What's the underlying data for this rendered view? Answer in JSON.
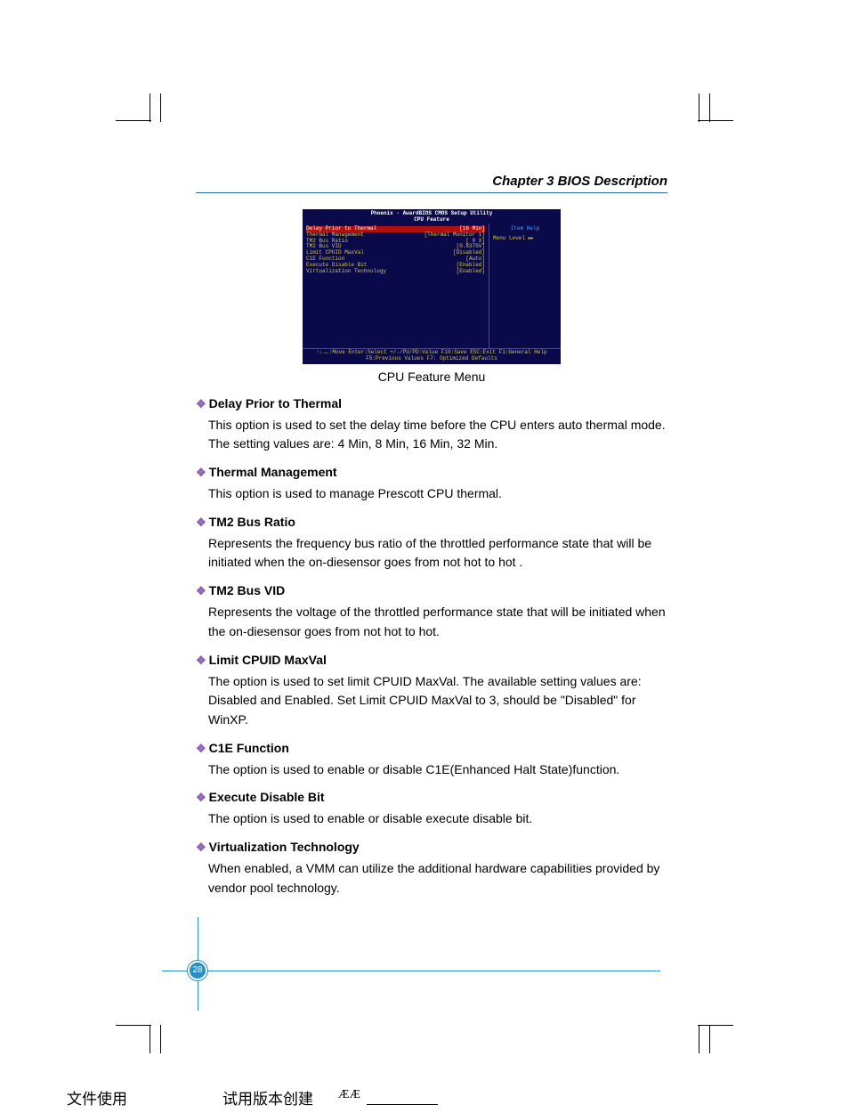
{
  "header": {
    "chapter": "Chapter 3    BIOS Description"
  },
  "bios": {
    "title1": "Phoenix - AwardBIOS CMOS Setup Utility",
    "title2": "CPU Feature",
    "items": [
      {
        "label": "Delay Prior to Thermal",
        "value": "[16 Min]",
        "highlight": true
      },
      {
        "label": "Thermal Management",
        "value": "[Thermal Monitor 1]"
      },
      {
        "label": "TM2 Bus Ratio",
        "value": "[ 0 X]"
      },
      {
        "label": "TM2 Bus VID",
        "value": "[0.8375V]"
      },
      {
        "label": "Limit CPUID MaxVal",
        "value": "[Disabled]"
      },
      {
        "label": "C1E Function",
        "value": "[Auto]"
      },
      {
        "label": "Execute Disable Bit",
        "value": "[Enabled]"
      },
      {
        "label": "Virtualization Technology",
        "value": "[Enabled]"
      }
    ],
    "help_title": "Item Help",
    "help_menu": "Menu Level   ▸▸",
    "footer1": "↑↓→←:Move   Enter:Select   +/-/PU/PD:Value   F10:Save   ESC:Exit   F1:General Help",
    "footer2": "F5:Previous Values          F7: Optimized Defaults",
    "caption": "CPU Feature Menu"
  },
  "sections": [
    {
      "title": "Delay Prior to Thermal",
      "body": "This option is used to set the delay time before the CPU enters auto thermal mode. The setting values are: 4 Min, 8 Min, 16 Min, 32 Min."
    },
    {
      "title": "Thermal Management",
      "body": "This option is used to manage Prescott CPU thermal."
    },
    {
      "title": "TM2 Bus Ratio",
      "body": "Represents the frequency bus ratio of the throttled performance state that will be initiated when the on-diesensor goes from not hot to hot ."
    },
    {
      "title": "TM2 Bus VID",
      "body": "Represents the voltage of the throttled performance state that will be initiated when the on-diesensor goes from not hot to hot."
    },
    {
      "title": "Limit CPUID MaxVal",
      "body": "The option is used to set limit CPUID MaxVal. The available setting values are: Disabled and Enabled. Set Limit CPUID MaxVal to 3, should be \"Disabled\" for WinXP."
    },
    {
      "title": "C1E Function",
      "body": "The option is used to enable or disable C1E(Enhanced Halt State)function."
    },
    {
      "title": "Execute Disable Bit",
      "body": "The option is used to enable or disable execute disable bit."
    },
    {
      "title": "Virtualization Technology",
      "body": "When enabled, a VMM can utilize the additional hardware capabilities provided by vendor pool technology."
    }
  ],
  "page_number": "28",
  "footer": {
    "text1": "文件使用",
    "text2": "试用版本创建",
    "text3": "ÆÆ"
  },
  "colors": {
    "header_rule": "#2a6db5",
    "bullet": "#8a5fb5",
    "ornament": "#2a8fc5",
    "bios_bg": "#0a0a4a",
    "bios_text": "#d4c45a",
    "bios_highlight_bg": "#b01010",
    "bios_help_title": "#3aaaff"
  }
}
